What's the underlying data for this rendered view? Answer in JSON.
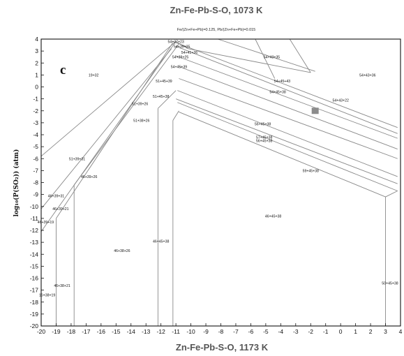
{
  "top_title": "Zn-Fe-Pb-S-O, 1073 K",
  "bottom_title": "Zn-Fe-Pb-S-O, 1173 K",
  "subtitle": "Fe/(Zn+Fe+Pb)=0.125, Pb/(Zn+Fe+Pb)=0.015",
  "panel_label": "c",
  "y_axis_label": "log₁₀(P(SO₂)) (atm)",
  "marker_color": "#8c8c8c",
  "chart_data": {
    "type": "phase-diagram",
    "xlim": [
      -20,
      4
    ],
    "ylim": [
      -20,
      4
    ],
    "x_ticks": [
      "-20",
      "-19",
      "-18",
      "-17",
      "-16",
      "-15",
      "-14",
      "-13",
      "-12",
      "-11",
      "-10",
      "-9",
      "-8",
      "-7",
      "-6",
      "-5",
      "-4",
      "-3",
      "-2",
      "-1",
      "0",
      "1",
      "2",
      "3",
      "4"
    ],
    "y_ticks": [
      "4",
      "3",
      "2",
      "1",
      "0",
      "-1",
      "-2",
      "-3",
      "-4",
      "-5",
      "-6",
      "-7",
      "-8",
      "-9",
      "-10",
      "-11",
      "-12",
      "-13",
      "-14",
      "-15",
      "-16",
      "-17",
      "-18",
      "-19",
      "-20"
    ],
    "region_labels": [
      {
        "text": "54+37+23",
        "x": -11.0,
        "y": 3.8
      },
      {
        "text": "54+39+25",
        "x": -10.6,
        "y": 3.4
      },
      {
        "text": "54+41+26",
        "x": -10.1,
        "y": 2.9
      },
      {
        "text": "54+39+25",
        "x": -10.7,
        "y": 2.5
      },
      {
        "text": "54+43+35",
        "x": -4.6,
        "y": 2.5
      },
      {
        "text": "54+45+39",
        "x": -10.8,
        "y": 1.7
      },
      {
        "text": "19+32",
        "x": -16.5,
        "y": 1.0
      },
      {
        "text": "54+43+36",
        "x": 1.8,
        "y": 1.0
      },
      {
        "text": "51+45+39",
        "x": -11.8,
        "y": 0.5
      },
      {
        "text": "54+45+43",
        "x": -3.9,
        "y": 0.5
      },
      {
        "text": "54+45+38",
        "x": -4.2,
        "y": -0.4
      },
      {
        "text": "51+45+38",
        "x": -12.0,
        "y": -0.8
      },
      {
        "text": "51+39+26",
        "x": -13.4,
        "y": -1.4
      },
      {
        "text": "54+43+22",
        "x": 0.0,
        "y": -1.1
      },
      {
        "text": "51+38+26",
        "x": -13.3,
        "y": -2.8
      },
      {
        "text": "56+45+38",
        "x": -5.2,
        "y": -3.1
      },
      {
        "text": "57+45+38",
        "x": -5.1,
        "y": -4.2
      },
      {
        "text": "56+45+38",
        "x": -5.1,
        "y": -4.5
      },
      {
        "text": "51+39+31",
        "x": -17.6,
        "y": -6.0
      },
      {
        "text": "59+45+38",
        "x": -2.0,
        "y": -7.0
      },
      {
        "text": "46+39+26",
        "x": -16.8,
        "y": -7.5
      },
      {
        "text": "46+39+31",
        "x": -19.0,
        "y": -9.1
      },
      {
        "text": "46+39+21",
        "x": -18.7,
        "y": -10.2
      },
      {
        "text": "46+39+19",
        "x": -19.7,
        "y": -11.3
      },
      {
        "text": "46+45+38",
        "x": -4.5,
        "y": -10.8
      },
      {
        "text": "46+45+38",
        "x": -12.0,
        "y": -12.9
      },
      {
        "text": "46+38+26",
        "x": -14.6,
        "y": -13.7
      },
      {
        "text": "46+38+21",
        "x": -18.6,
        "y": -16.6
      },
      {
        "text": "16+38+19",
        "x": -19.6,
        "y": -17.4
      },
      {
        "text": "50+45+38",
        "x": 3.3,
        "y": -16.4
      }
    ],
    "marker": {
      "x": -1.7,
      "y": -2.0
    }
  }
}
